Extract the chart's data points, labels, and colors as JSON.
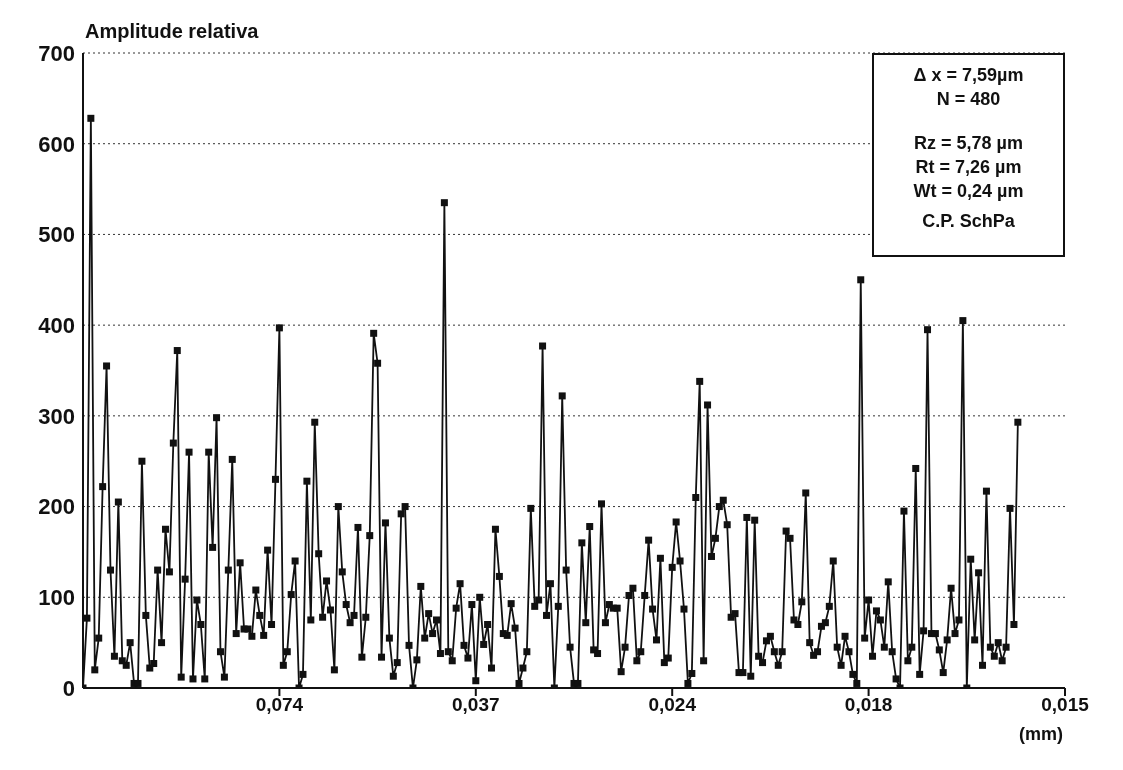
{
  "chart_data": {
    "type": "line",
    "ylabel": "Amplitude relativa",
    "xlabel": "(mm)",
    "categories": [
      null,
      null,
      null,
      null,
      null,
      null,
      null,
      null,
      null,
      null,
      null,
      null,
      null,
      null,
      null,
      null,
      null,
      null,
      null,
      null,
      null,
      null,
      null,
      null,
      null,
      null,
      null,
      null,
      null,
      null,
      null,
      null,
      null,
      null,
      null,
      null,
      null,
      null,
      null,
      null,
      null,
      null,
      null,
      null,
      null,
      null,
      null,
      null,
      null,
      null,
      "0,074",
      null,
      null,
      null,
      null,
      null,
      null,
      null,
      null,
      null,
      null,
      null,
      null,
      null,
      null,
      null,
      null,
      null,
      null,
      null,
      null,
      null,
      null,
      null,
      null,
      null,
      null,
      null,
      null,
      null,
      null,
      null,
      null,
      null,
      null,
      null,
      null,
      null,
      null,
      null,
      null,
      null,
      null,
      null,
      null,
      null,
      null,
      null,
      null,
      null,
      "0,037",
      null,
      null,
      null,
      null,
      null,
      null,
      null,
      null,
      null,
      null,
      null,
      null,
      null,
      null,
      null,
      null,
      null,
      null,
      null,
      null,
      null,
      null,
      null,
      null,
      null,
      null,
      null,
      null,
      null,
      null,
      null,
      null,
      null,
      null,
      null,
      null,
      null,
      null,
      null,
      null,
      null,
      null,
      null,
      null,
      null,
      null,
      null,
      null,
      null,
      "0,024",
      null,
      null,
      null,
      null,
      null,
      null,
      null,
      null,
      null,
      null,
      null,
      null,
      null,
      null,
      null,
      null,
      null,
      null,
      null,
      null,
      null,
      null,
      null,
      null,
      null,
      null,
      null,
      null,
      null,
      null,
      null,
      null,
      null,
      null,
      null,
      null,
      null,
      null,
      null,
      null,
      null,
      null,
      null,
      null,
      null,
      null,
      null,
      null,
      null,
      "0,018",
      null,
      null,
      null,
      null,
      null,
      null,
      null,
      null,
      null,
      null,
      null,
      null,
      null,
      null,
      null,
      null,
      null,
      null,
      null,
      null,
      null,
      null,
      null,
      null,
      null,
      null,
      null,
      null,
      null,
      null,
      null,
      null,
      null,
      null,
      null,
      null,
      null,
      null,
      null,
      null,
      null,
      null,
      null,
      null,
      null,
      null,
      null,
      null,
      null,
      "0,015"
    ],
    "ylim": [
      0,
      700
    ],
    "yticks": [
      0,
      100,
      200,
      300,
      400,
      500,
      600,
      700
    ],
    "grid": "y",
    "marker": "square",
    "line_style": "solid",
    "annotations": [
      "Δ x = 7,59µm",
      "N = 480",
      "Rz = 5,78 µm",
      "Rt = 7,26 µm",
      "Wt = 0,24 µm",
      "C.P. SchPa"
    ],
    "series": [
      {
        "color": "#111111",
        "values": [
          0,
          77,
          628,
          20,
          55,
          222,
          355,
          130,
          35,
          205,
          30,
          25,
          50,
          5,
          5,
          250,
          80,
          22,
          27,
          130,
          50,
          175,
          128,
          270,
          372,
          12,
          120,
          260,
          10,
          97,
          70,
          10,
          260,
          155,
          298,
          40,
          12,
          130,
          252,
          60,
          138,
          65,
          65,
          57,
          108,
          80,
          58,
          152,
          70,
          230,
          397,
          25,
          40,
          103,
          140,
          0,
          15,
          228,
          75,
          293,
          148,
          78,
          118,
          86,
          20,
          200,
          128,
          92,
          72,
          80,
          177,
          34,
          78,
          168,
          391,
          358,
          34,
          182,
          55,
          13,
          28,
          192,
          200,
          47,
          0,
          31,
          112,
          55,
          82,
          60,
          75,
          38,
          535,
          40,
          30,
          88,
          115,
          47,
          33,
          92,
          8,
          100,
          48,
          70,
          22,
          175,
          123,
          60,
          58,
          93,
          66,
          5,
          22,
          40,
          198,
          90,
          97,
          377,
          80,
          115,
          0,
          90,
          322,
          130,
          45,
          5,
          5,
          160,
          72,
          178,
          42,
          38,
          203,
          72,
          92,
          88,
          88,
          18,
          45,
          102,
          110,
          30,
          40,
          102,
          163,
          87,
          53,
          143,
          28,
          33,
          133,
          183,
          140,
          87,
          5,
          16,
          210,
          338,
          30,
          312,
          145,
          165,
          200,
          207,
          180,
          78,
          82,
          17,
          17,
          188,
          13,
          185,
          35,
          28,
          52,
          57,
          40,
          25,
          40,
          173,
          165,
          75,
          70,
          95,
          215,
          50,
          36,
          40,
          68,
          72,
          90,
          140,
          45,
          25,
          57,
          40,
          15,
          5,
          450,
          55,
          97,
          35,
          85,
          75,
          45,
          117,
          40,
          10,
          0,
          195,
          30,
          45,
          242,
          15,
          63,
          395,
          60,
          60,
          42,
          17,
          53,
          110,
          60,
          75,
          405,
          0,
          142,
          53,
          127,
          25,
          217,
          45,
          35,
          50,
          30,
          45,
          198,
          70,
          293,
          null,
          null,
          null,
          null,
          null,
          null,
          null,
          null,
          null,
          null,
          null,
          null
        ]
      }
    ]
  }
}
